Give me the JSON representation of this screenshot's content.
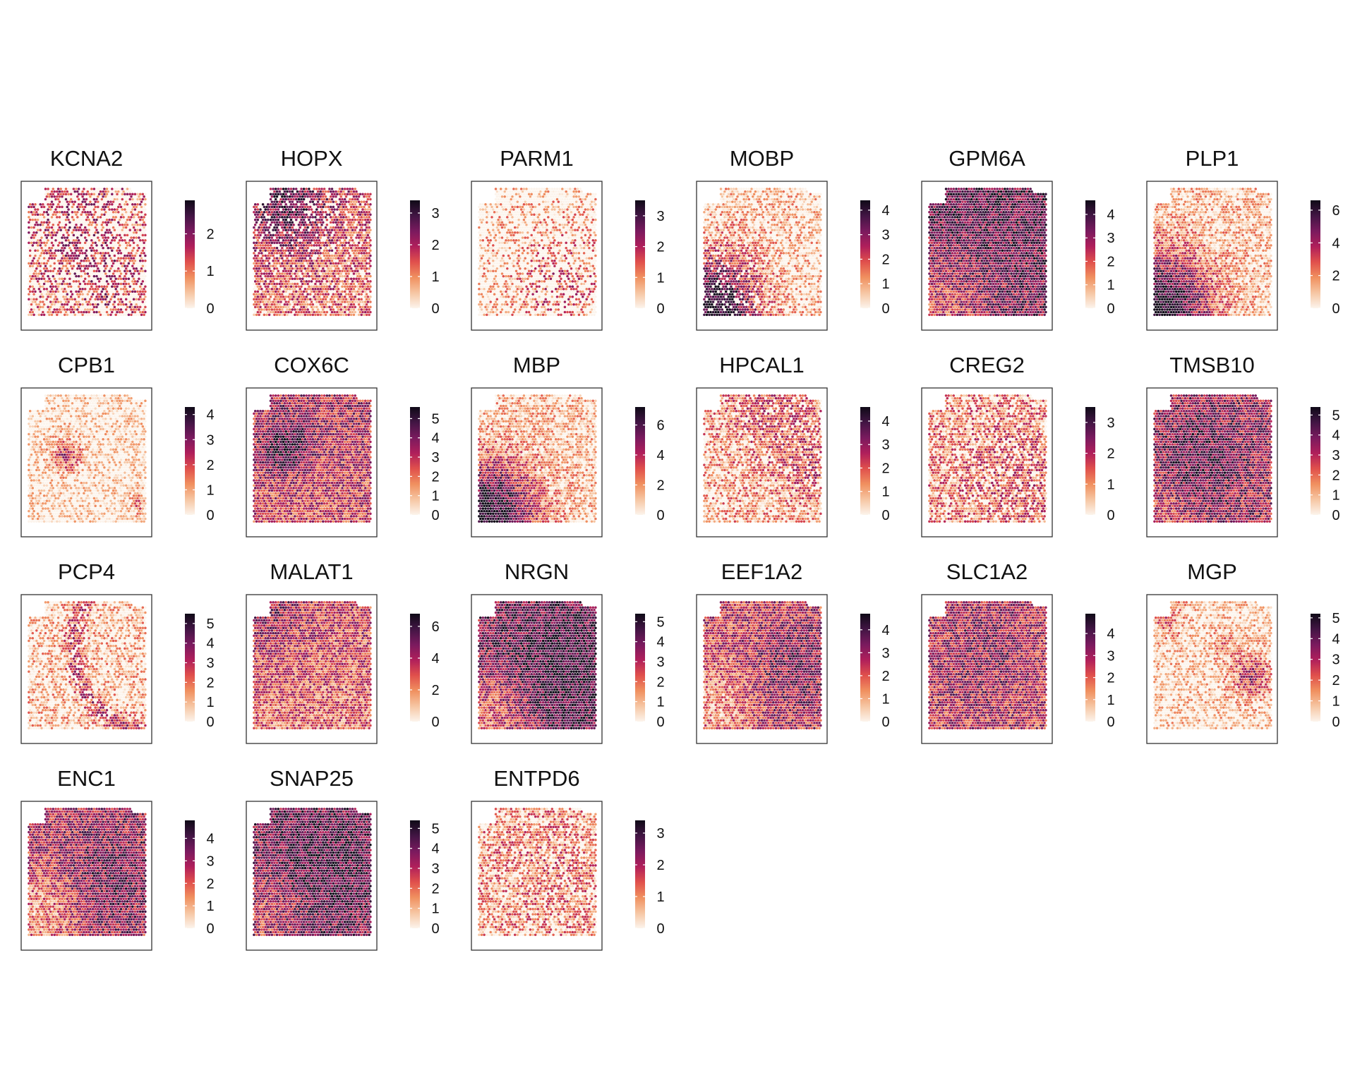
{
  "chart_data": {
    "type": "heatmap",
    "subtype": "spatial-feature-plot-grid",
    "colormap": [
      "#fcf4ec",
      "#f6c6a3",
      "#f0905f",
      "#e0504c",
      "#b01f5b",
      "#7a1a5e",
      "#421544",
      "#0f0a17"
    ],
    "panels": [
      {
        "gene": "KCNA2",
        "max": 2.9,
        "ticks": [
          0,
          1,
          2
        ],
        "pattern": "kcna2",
        "density": 0.55
      },
      {
        "gene": "HOPX",
        "max": 3.4,
        "ticks": [
          0,
          1,
          2,
          3
        ],
        "pattern": "hopx",
        "density": 0.8
      },
      {
        "gene": "PARM1",
        "max": 3.5,
        "ticks": [
          0,
          1,
          2,
          3
        ],
        "pattern": "parm1",
        "density": 0.5
      },
      {
        "gene": "MOBP",
        "max": 4.4,
        "ticks": [
          0,
          1,
          2,
          3,
          4
        ],
        "pattern": "wm",
        "density": 0.85
      },
      {
        "gene": "GPM6A",
        "max": 4.6,
        "ticks": [
          0,
          1,
          2,
          3,
          4
        ],
        "pattern": "gpm6a",
        "density": 1.0
      },
      {
        "gene": "PLP1",
        "max": 6.6,
        "ticks": [
          0,
          2,
          4,
          6
        ],
        "pattern": "wm",
        "density": 1.0
      },
      {
        "gene": "CPB1",
        "max": 4.3,
        "ticks": [
          0,
          1,
          2,
          3,
          4
        ],
        "pattern": "cpb1",
        "density": 1.0
      },
      {
        "gene": "COX6C",
        "max": 5.6,
        "ticks": [
          0,
          1,
          2,
          3,
          4,
          5
        ],
        "pattern": "cox6c",
        "density": 1.0
      },
      {
        "gene": "MBP",
        "max": 7.2,
        "ticks": [
          0,
          2,
          4,
          6
        ],
        "pattern": "wm",
        "density": 1.0
      },
      {
        "gene": "HPCAL1",
        "max": 4.6,
        "ticks": [
          0,
          1,
          2,
          3,
          4
        ],
        "pattern": "hpcal1",
        "density": 0.8
      },
      {
        "gene": "CREG2",
        "max": 3.5,
        "ticks": [
          0,
          1,
          2,
          3
        ],
        "pattern": "creg2",
        "density": 0.75
      },
      {
        "gene": "TMSB10",
        "max": 5.4,
        "ticks": [
          0,
          1,
          2,
          3,
          4,
          5
        ],
        "pattern": "tmsb10",
        "density": 1.0
      },
      {
        "gene": "PCP4",
        "max": 5.5,
        "ticks": [
          0,
          1,
          2,
          3,
          4,
          5
        ],
        "pattern": "pcp4",
        "density": 0.8
      },
      {
        "gene": "MALAT1",
        "max": 6.8,
        "ticks": [
          0,
          2,
          4,
          6
        ],
        "pattern": "malat1",
        "density": 1.0
      },
      {
        "gene": "NRGN",
        "max": 5.4,
        "ticks": [
          0,
          1,
          2,
          3,
          4,
          5
        ],
        "pattern": "nrgn",
        "density": 1.0
      },
      {
        "gene": "EEF1A2",
        "max": 4.7,
        "ticks": [
          0,
          1,
          2,
          3,
          4
        ],
        "pattern": "eef1a2",
        "density": 1.0
      },
      {
        "gene": "SLC1A2",
        "max": 4.9,
        "ticks": [
          0,
          1,
          2,
          3,
          4
        ],
        "pattern": "slc1a2",
        "density": 1.0
      },
      {
        "gene": "MGP",
        "max": 5.2,
        "ticks": [
          0,
          1,
          2,
          3,
          4,
          5
        ],
        "pattern": "mgp",
        "density": 1.0
      },
      {
        "gene": "ENC1",
        "max": 4.8,
        "ticks": [
          0,
          1,
          2,
          3,
          4
        ],
        "pattern": "enc1",
        "density": 1.0
      },
      {
        "gene": "SNAP25",
        "max": 5.4,
        "ticks": [
          0,
          1,
          2,
          3,
          4,
          5
        ],
        "pattern": "snap25",
        "density": 1.0
      },
      {
        "gene": "ENTPD6",
        "max": 3.4,
        "ticks": [
          0,
          1,
          2,
          3
        ],
        "pattern": "entpd6",
        "density": 0.75
      }
    ]
  }
}
